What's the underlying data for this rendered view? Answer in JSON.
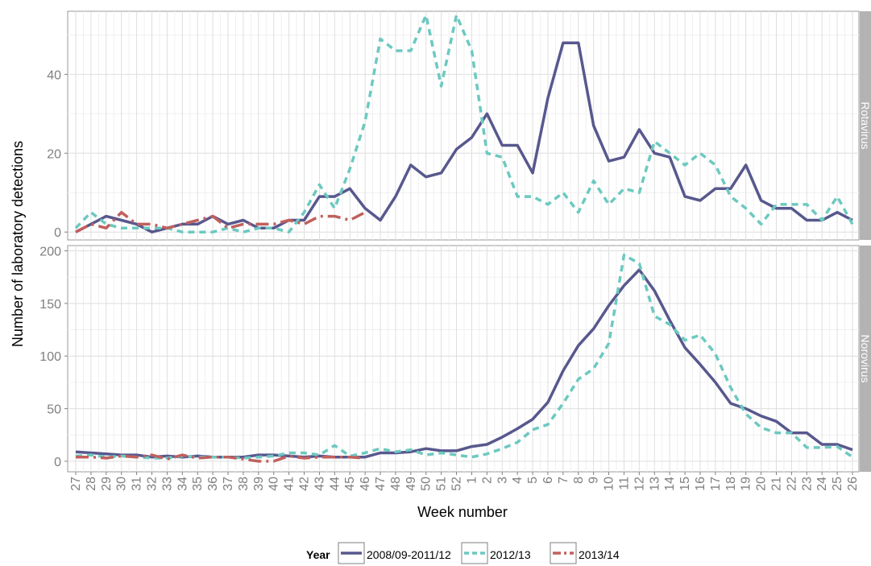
{
  "chart_data": {
    "type": "line",
    "xlabel": "Week number",
    "ylabel": "Number of laboratory detections",
    "grid": true,
    "legend": {
      "title": "Year",
      "position": "bottom"
    },
    "x": [
      "27",
      "28",
      "29",
      "30",
      "31",
      "32",
      "33",
      "34",
      "35",
      "36",
      "37",
      "38",
      "39",
      "40",
      "41",
      "42",
      "43",
      "44",
      "45",
      "46",
      "47",
      "48",
      "49",
      "50",
      "51",
      "52",
      "1",
      "2",
      "3",
      "4",
      "5",
      "6",
      "7",
      "8",
      "9",
      "10",
      "11",
      "12",
      "13",
      "14",
      "15",
      "16",
      "17",
      "18",
      "19",
      "20",
      "21",
      "22",
      "23",
      "24",
      "25",
      "26"
    ],
    "series_styles": [
      {
        "name": "2008/09-2011/12",
        "color": "#58588e",
        "dash": ""
      },
      {
        "name": "2012/13",
        "color": "#6cc9c0",
        "dash": "8,6"
      },
      {
        "name": "2013/14",
        "color": "#c0605e",
        "dash": "16,6,3,6"
      }
    ],
    "panels": [
      {
        "strip": "Rotavirus",
        "ylim": [
          -2,
          56
        ],
        "yticks": [
          0,
          20,
          40
        ],
        "series": [
          {
            "name": "2008/09-2011/12",
            "values": [
              0,
              2,
              4,
              3,
              2,
              0,
              1,
              2,
              2,
              4,
              2,
              3,
              1,
              1,
              3,
              3,
              9,
              9,
              11,
              6,
              3,
              9,
              17,
              14,
              15,
              21,
              24,
              30,
              22,
              22,
              15,
              34,
              48,
              48,
              27,
              18,
              19,
              26,
              20,
              19,
              9,
              8,
              11,
              11,
              17,
              8,
              6,
              6,
              3,
              3,
              5,
              3
            ]
          },
          {
            "name": "2012/13",
            "values": [
              1,
              5,
              2,
              1,
              1,
              1,
              1,
              0,
              0,
              0,
              1,
              0,
              1,
              1,
              0,
              5,
              12,
              6,
              16,
              28,
              49,
              46,
              46,
              55,
              37,
              55,
              46,
              20,
              19,
              9,
              9,
              7,
              10,
              5,
              13,
              7,
              11,
              10,
              23,
              20,
              17,
              20,
              17,
              9,
              6,
              2,
              7,
              7,
              7,
              3,
              9,
              2
            ]
          },
          {
            "name": "2013/14",
            "values": [
              0,
              2,
              1,
              5,
              2,
              2,
              1,
              2,
              3,
              4,
              1,
              2,
              2,
              2,
              3,
              2,
              4,
              4,
              3,
              5
            ]
          }
        ]
      },
      {
        "strip": "Norovirus",
        "ylim": [
          -10,
          205
        ],
        "yticks": [
          0,
          50,
          100,
          150,
          200
        ],
        "series": [
          {
            "name": "2008/09-2011/12",
            "values": [
              9,
              8,
              7,
              6,
              6,
              4,
              5,
              4,
              5,
              4,
              4,
              4,
              6,
              6,
              5,
              4,
              5,
              4,
              4,
              4,
              8,
              8,
              9,
              12,
              10,
              10,
              14,
              16,
              23,
              31,
              40,
              56,
              86,
              110,
              126,
              148,
              167,
              182,
              162,
              134,
              108,
              92,
              75,
              55,
              50,
              43,
              38,
              27,
              27,
              16,
              16,
              11
            ]
          },
          {
            "name": "2012/13",
            "values": [
              5,
              6,
              4,
              5,
              4,
              3,
              3,
              5,
              4,
              4,
              4,
              3,
              4,
              5,
              8,
              8,
              6,
              15,
              5,
              8,
              12,
              9,
              11,
              6,
              8,
              6,
              4,
              7,
              12,
              18,
              30,
              35,
              55,
              78,
              88,
              112,
              196,
              188,
              138,
              130,
              115,
              120,
              102,
              70,
              45,
              32,
              27,
              27,
              13,
              13,
              14,
              4
            ]
          },
          {
            "name": "2013/14",
            "values": [
              4,
              4,
              3,
              5,
              4,
              6,
              2,
              6,
              3,
              4,
              4,
              2,
              0,
              0,
              5,
              3,
              4,
              4,
              4,
              3
            ]
          }
        ]
      }
    ]
  }
}
